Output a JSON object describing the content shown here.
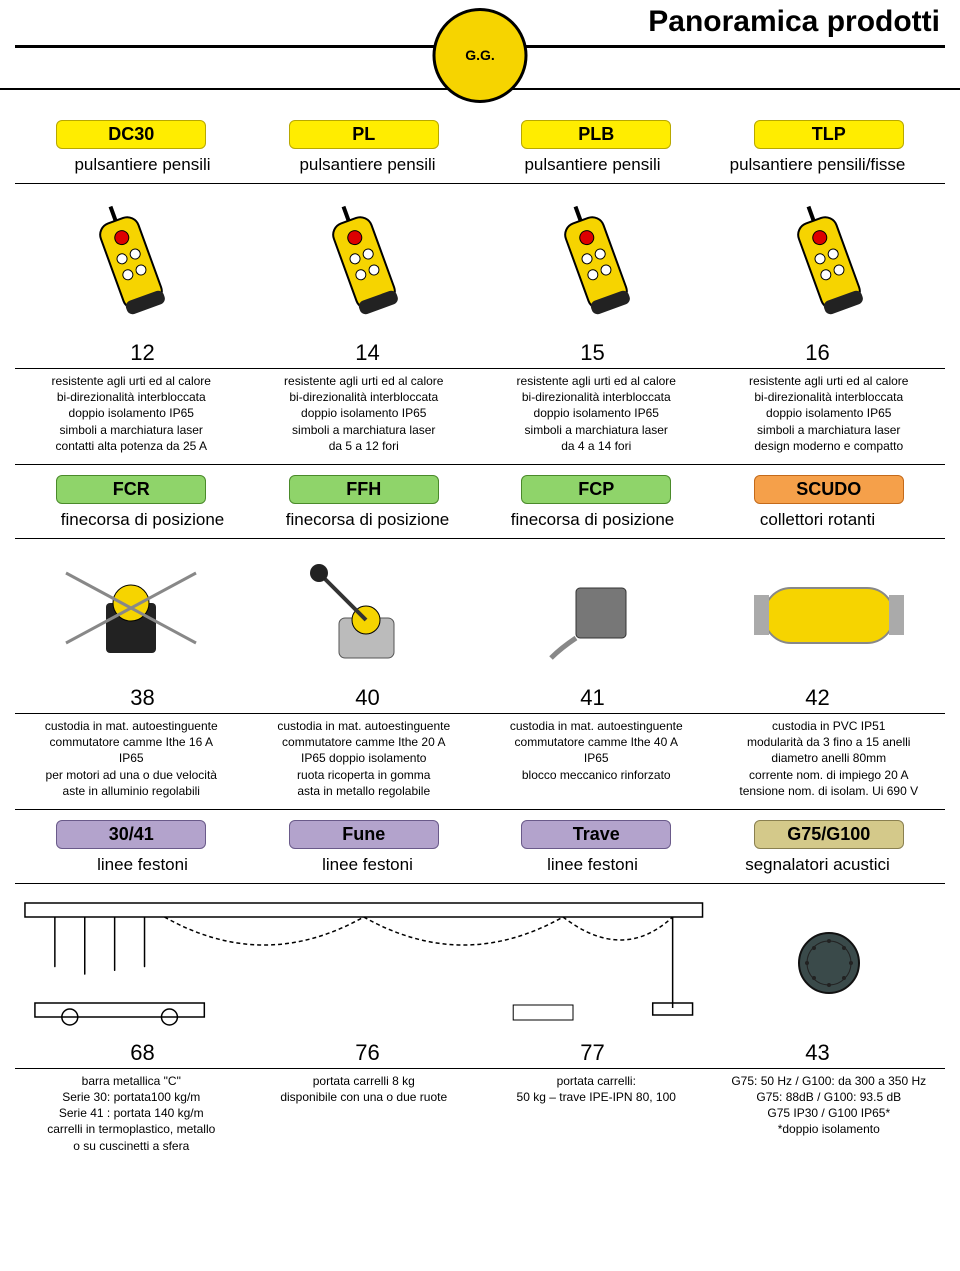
{
  "header": {
    "title": "Panoramica prodotti",
    "logo_text": "G.G."
  },
  "colors": {
    "yellow_fill": "#ffed00",
    "yellow_border": "#b8a800",
    "green_fill": "#8fd46a",
    "green_border": "#4a8a2a",
    "orange_fill": "#f5a04a",
    "orange_border": "#c46a1a",
    "purple_fill": "#b3a3cc",
    "purple_border": "#6a5a8a",
    "tan_fill": "#d4c98a",
    "tan_border": "#8a8050",
    "text": "#000000",
    "rule": "#000000",
    "bg": "#ffffff"
  },
  "sections": [
    {
      "cols": [
        {
          "badge": "DC30",
          "badge_style": "yellow",
          "subtitle": "pulsantiere pensili",
          "page": "12",
          "desc": "resistente agli urti ed al calore\nbi-direzionalità interbloccata\ndoppio isolamento IP65\nsimboli a marchiatura laser\ncontatti alta potenza da 25 A"
        },
        {
          "badge": "PL",
          "badge_style": "yellow",
          "subtitle": "pulsantiere pensili",
          "page": "14",
          "desc": "resistente agli urti ed al calore\nbi-direzionalità interbloccata\ndoppio isolamento IP65\nsimboli a marchiatura laser\nda 5 a 12 fori"
        },
        {
          "badge": "PLB",
          "badge_style": "yellow",
          "subtitle": "pulsantiere pensili",
          "page": "15",
          "desc": "resistente agli urti ed al calore\nbi-direzionalità interbloccata\ndoppio isolamento IP65\nsimboli a marchiatura laser\nda 4 a 14 fori"
        },
        {
          "badge": "TLP",
          "badge_style": "yellow",
          "subtitle": "pulsantiere pensili/fisse",
          "page": "16",
          "desc": "resistente agli urti ed al calore\nbi-direzionalità interbloccata\ndoppio isolamento IP65\nsimboli a marchiatura laser\ndesign moderno e compatto"
        }
      ]
    },
    {
      "cols": [
        {
          "badge": "FCR",
          "badge_style": "green",
          "subtitle": "finecorsa di posizione",
          "page": "38",
          "desc": "custodia in mat. autoestinguente\ncommutatore camme Ithe 16 A\nIP65\nper motori ad una o due velocità\naste in alluminio regolabili"
        },
        {
          "badge": "FFH",
          "badge_style": "green",
          "subtitle": "finecorsa di posizione",
          "page": "40",
          "desc": "custodia in mat. autoestinguente\ncommutatore camme Ithe 20 A\nIP65 doppio isolamento\nruota ricoperta in gomma\nasta in metallo regolabile"
        },
        {
          "badge": "FCP",
          "badge_style": "green",
          "subtitle": "finecorsa di posizione",
          "page": "41",
          "desc": "custodia in mat. autoestinguente\ncommutatore camme Ithe 40 A\nIP65\nblocco meccanico rinforzato"
        },
        {
          "badge": "SCUDO",
          "badge_style": "orange",
          "subtitle": "collettori rotanti",
          "page": "42",
          "desc": "custodia in PVC IP51\nmodularità da 3 fino a 15 anelli\ndiametro anelli 80mm\ncorrente nom. di impiego 20 A\ntensione nom. di isolam. Ui 690 V"
        }
      ]
    },
    {
      "wide_image": true,
      "cols": [
        {
          "badge": "30/41",
          "badge_style": "purple",
          "subtitle": "linee festoni",
          "page": "68",
          "desc": "barra metallica \"C\"\nSerie 30: portata100 kg/m\nSerie 41 : portata 140 kg/m\ncarrelli in termoplastico, metallo\no su cuscinetti a sfera"
        },
        {
          "badge": "Fune",
          "badge_style": "purple",
          "subtitle": "linee festoni",
          "page": "76",
          "desc": "portata carrelli 8 kg\ndisponibile con una o due ruote"
        },
        {
          "badge": "Trave",
          "badge_style": "purple",
          "subtitle": "linee festoni",
          "page": "77",
          "desc": "portata carrelli:\n50 kg – trave IPE-IPN 80, 100"
        },
        {
          "badge": "G75/G100",
          "badge_style": "tan",
          "subtitle": "segnalatori acustici",
          "page": "43",
          "desc": "G75: 50 Hz / G100: da 300  a 350 Hz\nG75: 88dB / G100: 93.5 dB\nG75 IP30  / G100 IP65*\n*doppio isolamento"
        }
      ]
    }
  ]
}
